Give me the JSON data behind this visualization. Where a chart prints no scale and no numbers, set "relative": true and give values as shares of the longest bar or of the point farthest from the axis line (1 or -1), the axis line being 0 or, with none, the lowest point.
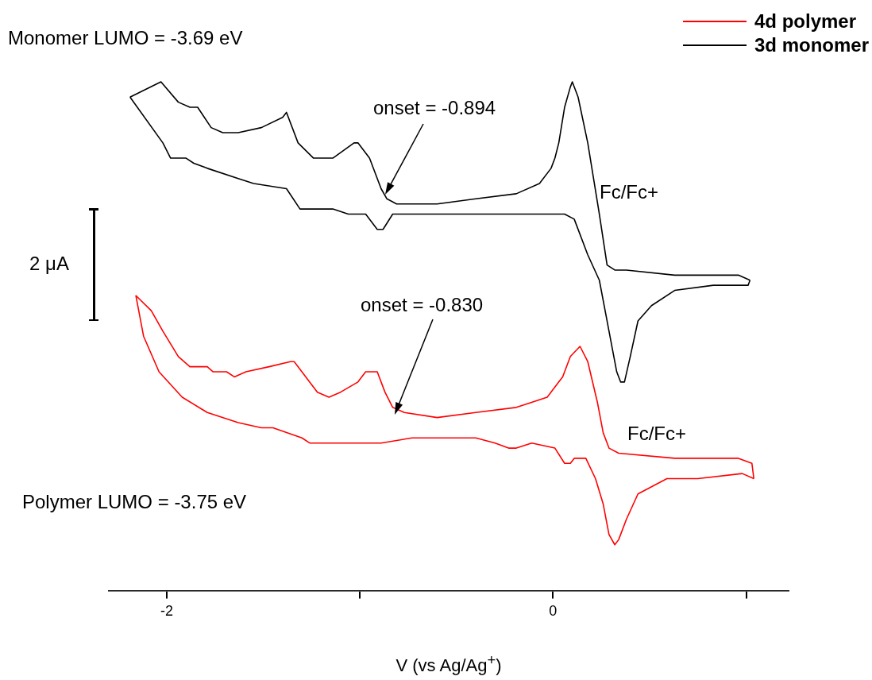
{
  "chart_data": {
    "type": "line",
    "relative": true,
    "xlabel": "V (vs Ag/Ag$^{+}$)",
    "xlim": [
      -2.3,
      1.22
    ],
    "xticks": [
      -2,
      {
        "value": -1,
        "label": null
      },
      0,
      {
        "value": 1,
        "label": null
      }
    ],
    "legend": "top right",
    "grid": false,
    "series": [
      {
        "name": "4d polymer",
        "color": "#ff0000",
        "x": [
          -2.16,
          -2.08,
          -2.02,
          -1.94,
          -1.88,
          -1.79,
          -1.76,
          -1.69,
          -1.65,
          -1.59,
          -1.47,
          -1.36,
          -1.34,
          -1.28,
          -1.22,
          -1.16,
          -1.1,
          -1.01,
          -0.97,
          -0.93,
          -0.91,
          -0.87,
          -0.83,
          -0.77,
          -0.6,
          -0.4,
          -0.19,
          -0.03,
          0.03,
          0.05,
          0.06,
          0.09,
          0.14,
          0.18,
          0.23,
          0.26,
          0.29,
          0.34,
          0.63,
          0.96,
          1.03,
          1.04
        ],
        "values": [
          0.58,
          0.55,
          0.51,
          0.46,
          0.44,
          0.44,
          0.43,
          0.43,
          0.42,
          0.43,
          0.44,
          0.45,
          0.45,
          0.42,
          0.39,
          0.38,
          0.39,
          0.41,
          0.43,
          0.43,
          0.43,
          0.39,
          0.36,
          0.35,
          0.34,
          0.35,
          0.36,
          0.38,
          0.41,
          0.42,
          0.43,
          0.46,
          0.48,
          0.45,
          0.37,
          0.31,
          0.28,
          0.27,
          0.26,
          0.26,
          0.25,
          0.22
        ]
      },
      {
        "color": "#ff0000",
        "x": [
          -2.16,
          -2.12,
          -2.04,
          -1.92,
          -1.79,
          -1.63,
          -1.51,
          -1.45,
          -1.3,
          -1.26,
          -1.22,
          -1.1,
          -0.97,
          -0.89,
          -0.73,
          -0.6,
          -0.4,
          -0.3,
          -0.23,
          -0.19,
          -0.11,
          0.01,
          0.06,
          0.09,
          0.11,
          0.14,
          0.17,
          0.22,
          0.26,
          0.29,
          0.32,
          0.34,
          0.38,
          0.44,
          0.59,
          0.75,
          0.98,
          1.04
        ],
        "values": [
          0.58,
          0.5,
          0.43,
          0.38,
          0.35,
          0.33,
          0.32,
          0.32,
          0.3,
          0.29,
          0.29,
          0.29,
          0.29,
          0.29,
          0.3,
          0.3,
          0.3,
          0.29,
          0.28,
          0.28,
          0.29,
          0.28,
          0.25,
          0.25,
          0.26,
          0.26,
          0.26,
          0.22,
          0.17,
          0.11,
          0.09,
          0.1,
          0.14,
          0.19,
          0.22,
          0.22,
          0.23,
          0.22
        ]
      },
      {
        "name": "3d monomer",
        "color": "#000000",
        "x": [
          -2.19,
          -2.03,
          -1.94,
          -1.88,
          -1.84,
          -1.77,
          -1.71,
          -1.63,
          -1.51,
          -1.4,
          -1.38,
          -1.32,
          -1.24,
          -1.14,
          -1.03,
          -1.01,
          -0.95,
          -0.89,
          -0.86,
          -0.81,
          -0.6,
          -0.4,
          -0.19,
          -0.07,
          -0.01,
          0.01,
          0.03,
          0.06,
          0.09,
          0.1,
          0.13,
          0.18,
          0.24,
          0.28,
          0.32,
          0.38,
          0.63,
          0.96,
          1.02
        ],
        "values": [
          0.97,
          1.0,
          0.96,
          0.95,
          0.95,
          0.91,
          0.9,
          0.9,
          0.91,
          0.93,
          0.94,
          0.88,
          0.85,
          0.85,
          0.88,
          0.88,
          0.85,
          0.79,
          0.77,
          0.76,
          0.76,
          0.77,
          0.78,
          0.8,
          0.83,
          0.85,
          0.88,
          0.95,
          0.99,
          1.0,
          0.97,
          0.88,
          0.74,
          0.64,
          0.63,
          0.63,
          0.62,
          0.62,
          0.61
        ]
      },
      {
        "color": "#000000",
        "x": [
          -2.19,
          -2.02,
          -1.98,
          -1.9,
          -1.86,
          -1.79,
          -1.63,
          -1.55,
          -1.38,
          -1.31,
          -1.28,
          -1.2,
          -1.14,
          -1.06,
          -0.97,
          -0.91,
          -0.88,
          -0.83,
          -0.77,
          -0.56,
          -0.19,
          0.06,
          0.11,
          0.18,
          0.24,
          0.29,
          0.33,
          0.35,
          0.37,
          0.4,
          0.44,
          0.51,
          0.63,
          0.83,
          1.01,
          1.02
        ],
        "values": [
          0.97,
          0.88,
          0.85,
          0.85,
          0.84,
          0.83,
          0.81,
          0.8,
          0.79,
          0.75,
          0.75,
          0.75,
          0.75,
          0.74,
          0.74,
          0.71,
          0.71,
          0.74,
          0.74,
          0.74,
          0.74,
          0.74,
          0.73,
          0.66,
          0.61,
          0.51,
          0.43,
          0.41,
          0.41,
          0.46,
          0.53,
          0.56,
          0.59,
          0.6,
          0.6,
          0.61
        ]
      }
    ],
    "annotations": [
      "Monomer LUMO = -3.69 eV",
      "onset = -0.894",
      "Fc/Fc+",
      "2 μA",
      "onset = -0.830",
      "Fc/Fc+",
      "Polymer LUMO = -3.75 eV"
    ]
  }
}
